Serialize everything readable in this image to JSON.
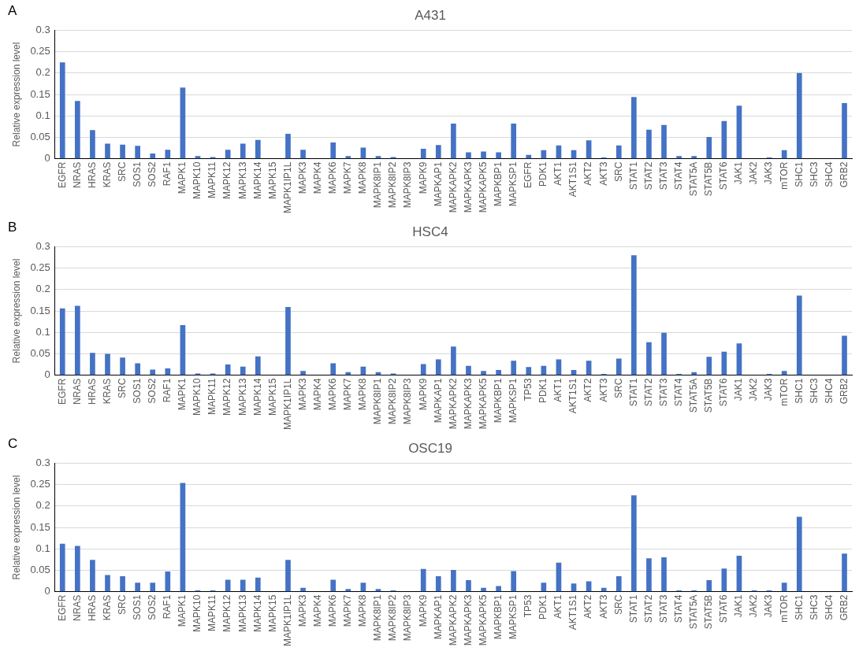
{
  "chart_data": [
    {
      "type": "bar",
      "title": "A431",
      "ylabel": "Relative expression level",
      "annotations": [
        "A"
      ],
      "color": "#4472c4",
      "grid": "y",
      "ylim": [
        0,
        0.3
      ],
      "yticks": [
        0,
        0.05,
        0.1,
        0.15,
        0.2,
        0.25,
        0.3
      ],
      "categories": [
        "EGFR",
        "NRAS",
        "HRAS",
        "KRAS",
        "SRC",
        "SOS1",
        "SOS2",
        "RAF1",
        "MAPK1",
        "MAPK10",
        "MAPK11",
        "MAPK12",
        "MAPK13",
        "MAPK14",
        "MAPK15",
        "MAPK1IP1L",
        "MAPK3",
        "MAPK4",
        "MAPK6",
        "MAPK7",
        "MAPK8",
        "MAPK8IP1",
        "MAPK8IP2",
        "MAPK8IP3",
        "MAPK9",
        "MAPKAP1",
        "MAPKAPK2",
        "MAPKAPK3",
        "MAPKAPK5",
        "MAPKBP1",
        "MAPKSP1",
        "EGFR",
        "PDK1",
        "AKT1",
        "AKT1S1",
        "AKT2",
        "AKT3",
        "SRC",
        "STAT1",
        "STAT2",
        "STAT3",
        "STAT4",
        "STAT5A",
        "STAT5B",
        "STAT6",
        "JAK1",
        "JAK2",
        "JAK3",
        "mTOR",
        "SHC1",
        "SHC3",
        "SHC4",
        "GRB2"
      ],
      "values": [
        0.225,
        0.135,
        0.067,
        0.035,
        0.033,
        0.03,
        0.012,
        0.021,
        0.166,
        0.006,
        0.004,
        0.021,
        0.035,
        0.044,
        0,
        0.058,
        0.021,
        0,
        0.038,
        0.006,
        0.026,
        0.006,
        0.004,
        0,
        0.023,
        0.032,
        0.082,
        0.015,
        0.017,
        0.015,
        0.082,
        0.009,
        0.02,
        0.031,
        0.02,
        0.043,
        0.003,
        0.031,
        0.144,
        0.068,
        0.079,
        0.006,
        0.006,
        0.051,
        0.088,
        0.124,
        0,
        0.003,
        0.02,
        0.2,
        0,
        0,
        0.13
      ]
    },
    {
      "type": "bar",
      "title": "HSC4",
      "ylabel": "Relative expression level",
      "annotations": [
        "B"
      ],
      "color": "#4472c4",
      "grid": "y",
      "ylim": [
        0,
        0.3
      ],
      "yticks": [
        0,
        0.05,
        0.1,
        0.15,
        0.2,
        0.25,
        0.3
      ],
      "categories": [
        "EGFR",
        "NRAS",
        "HRAS",
        "KRAS",
        "SRC",
        "SOS1",
        "SOS2",
        "RAF1",
        "MAPK1",
        "MAPK10",
        "MAPK11",
        "MAPK12",
        "MAPK13",
        "MAPK14",
        "MAPK15",
        "MAPK1IP1L",
        "MAPK3",
        "MAPK4",
        "MAPK6",
        "MAPK7",
        "MAPK8",
        "MAPK8IP1",
        "MAPK8IP2",
        "MAPK8IP3",
        "MAPK9",
        "MAPKAP1",
        "MAPKAPK2",
        "MAPKAPK3",
        "MAPKAPK5",
        "MAPKBP1",
        "MAPKSP1",
        "TP53",
        "PDK1",
        "AKT1",
        "AKT1S1",
        "AKT2",
        "AKT3",
        "SRC",
        "STAT1",
        "STAT2",
        "STAT3",
        "STAT4",
        "STAT5A",
        "STAT5B",
        "STAT6",
        "JAK1",
        "JAK2",
        "JAK3",
        "mTOR",
        "SHC1",
        "SHC3",
        "SHC4",
        "GRB2"
      ],
      "values": [
        0.156,
        0.162,
        0.052,
        0.05,
        0.041,
        0.028,
        0.013,
        0.016,
        0.117,
        0.004,
        0.004,
        0.025,
        0.02,
        0.044,
        0,
        0.159,
        0.01,
        0,
        0.028,
        0.007,
        0.02,
        0.007,
        0.004,
        0,
        0.026,
        0.037,
        0.067,
        0.022,
        0.01,
        0.012,
        0.034,
        0.019,
        0.022,
        0.037,
        0.012,
        0.034,
        0.003,
        0.039,
        0.28,
        0.077,
        0.099,
        0.003,
        0.007,
        0.043,
        0.055,
        0.074,
        0,
        0.003,
        0.01,
        0.186,
        0,
        0,
        0.092
      ]
    },
    {
      "type": "bar",
      "title": "OSC19",
      "ylabel": "Relative expression level",
      "annotations": [
        "C"
      ],
      "color": "#4472c4",
      "grid": "y",
      "ylim": [
        0,
        0.3
      ],
      "yticks": [
        0,
        0.05,
        0.1,
        0.15,
        0.2,
        0.25,
        0.3
      ],
      "categories": [
        "EGFR",
        "NRAS",
        "HRAS",
        "KRAS",
        "SRC",
        "SOS1",
        "SOS2",
        "RAF1",
        "MAPK1",
        "MAPK10",
        "MAPK11",
        "MAPK12",
        "MAPK13",
        "MAPK14",
        "MAPK15",
        "MAPK1IP1L",
        "MAPK3",
        "MAPK4",
        "MAPK6",
        "MAPK7",
        "MAPK8",
        "MAPK8IP1",
        "MAPK8IP2",
        "MAPK8IP3",
        "MAPK9",
        "MAPKAP1",
        "MAPKAPK2",
        "MAPKAPK3",
        "MAPKAPK5",
        "MAPKBP1",
        "MAPKSP1",
        "TP53",
        "PDK1",
        "AKT1",
        "AKT1S1",
        "AKT2",
        "AKT3",
        "SRC",
        "STAT1",
        "STAT2",
        "STAT3",
        "STAT4",
        "STAT5A",
        "STAT5B",
        "STAT6",
        "JAK1",
        "JAK2",
        "JAK3",
        "mTOR",
        "SHC1",
        "SHC3",
        "SHC4",
        "GRB2"
      ],
      "values": [
        0.112,
        0.107,
        0.074,
        0.039,
        0.036,
        0.021,
        0.021,
        0.047,
        0.254,
        0.003,
        0.003,
        0.028,
        0.028,
        0.033,
        0,
        0.074,
        0.009,
        0,
        0.028,
        0.006,
        0.021,
        0.006,
        0.003,
        0,
        0.053,
        0.036,
        0.051,
        0.027,
        0.009,
        0.013,
        0.048,
        0,
        0.021,
        0.068,
        0.019,
        0.024,
        0.009,
        0.036,
        0.225,
        0.078,
        0.08,
        0.003,
        0.003,
        0.027,
        0.054,
        0.084,
        0.003,
        0.003,
        0.021,
        0.175,
        0,
        0,
        0.089
      ]
    }
  ]
}
